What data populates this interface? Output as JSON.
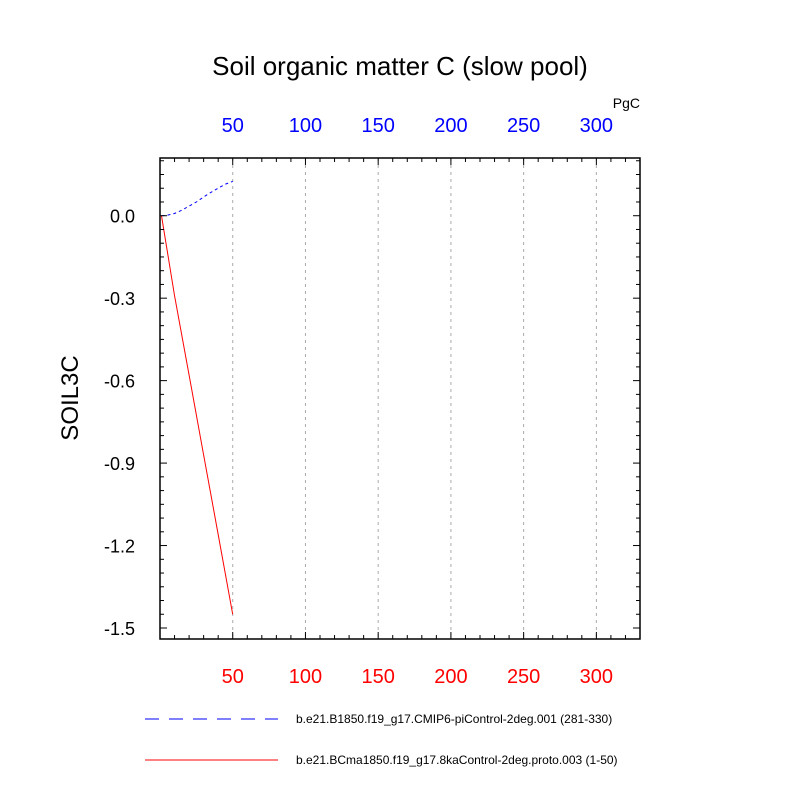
{
  "chart_data": {
    "type": "line",
    "title": "Soil organic matter C (slow pool)",
    "ylabel": "SOIL3C",
    "units_label": "PgC",
    "xlim": [
      0,
      330
    ],
    "ylim": [
      -1.54,
      0.21
    ],
    "grid": "vertical dashed lines at x ticks",
    "y_ticks": [
      0.0,
      -0.3,
      -0.6,
      -0.9,
      -1.2,
      -1.5
    ],
    "y_tick_labels": [
      "0.0",
      "-0.3",
      "-0.6",
      "-0.9",
      "-1.2",
      "-1.5"
    ],
    "x_ticks": [
      50,
      100,
      150,
      200,
      250,
      300
    ],
    "x_tick_labels_top": [
      "50",
      "100",
      "150",
      "200",
      "250",
      "300"
    ],
    "x_tick_labels_bottom": [
      "50",
      "100",
      "150",
      "200",
      "250",
      "300"
    ],
    "legend_position": "bottom",
    "series": [
      {
        "name": "b.e21.B1850.f19_g17.CMIP6-piControl-2deg.001 (281-330)",
        "color": "#0000ff",
        "style": "dashed",
        "x": [
          1,
          5,
          10,
          15,
          20,
          25,
          30,
          35,
          40,
          45,
          50
        ],
        "y": [
          0.0,
          0.002,
          0.008,
          0.02,
          0.035,
          0.05,
          0.068,
          0.085,
          0.1,
          0.115,
          0.125
        ]
      },
      {
        "name": "b.e21.BCma1850.f19_g17.8kaControl-2deg.proto.003 (1-50)",
        "color": "#ff0000",
        "style": "solid",
        "x": [
          1,
          10,
          20,
          30,
          40,
          50
        ],
        "y": [
          0.0,
          -0.29,
          -0.58,
          -0.87,
          -1.16,
          -1.45
        ]
      }
    ]
  }
}
